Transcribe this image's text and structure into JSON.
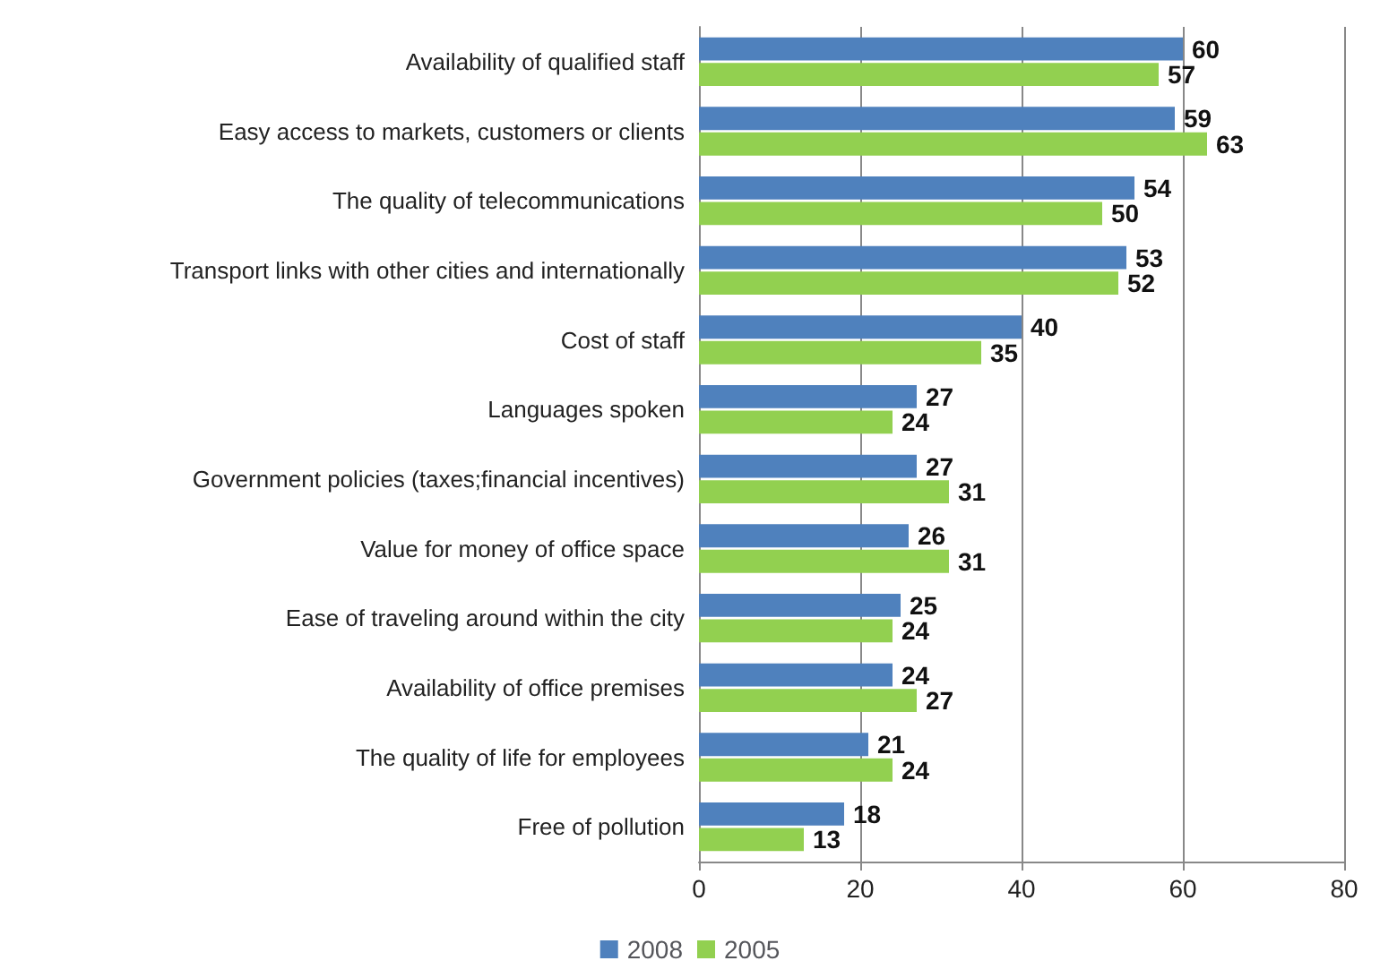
{
  "chart_data": {
    "type": "bar",
    "orientation": "horizontal",
    "categories": [
      "Availability of qualified staff",
      "Easy access to markets, customers or clients",
      "The quality of telecommunications",
      "Transport links with other cities and internationally",
      "Cost of staff",
      "Languages spoken",
      "Government policies (taxes;financial incentives)",
      "Value for money of office space",
      "Ease of traveling around within the city",
      "Availability of office premises",
      "The quality of life for employees",
      "Free of pollution"
    ],
    "series": [
      {
        "name": "2008",
        "color": "#4f81bd",
        "values": [
          60,
          59,
          54,
          53,
          40,
          27,
          27,
          26,
          25,
          24,
          21,
          18
        ]
      },
      {
        "name": "2005",
        "color": "#92d050",
        "values": [
          57,
          63,
          50,
          52,
          35,
          24,
          31,
          31,
          24,
          27,
          24,
          13
        ]
      }
    ],
    "xlim": [
      0,
      80
    ],
    "xticks": [
      0,
      20,
      40,
      60,
      80
    ],
    "grid": "x",
    "legend": "bottom",
    "data_labels": true
  }
}
